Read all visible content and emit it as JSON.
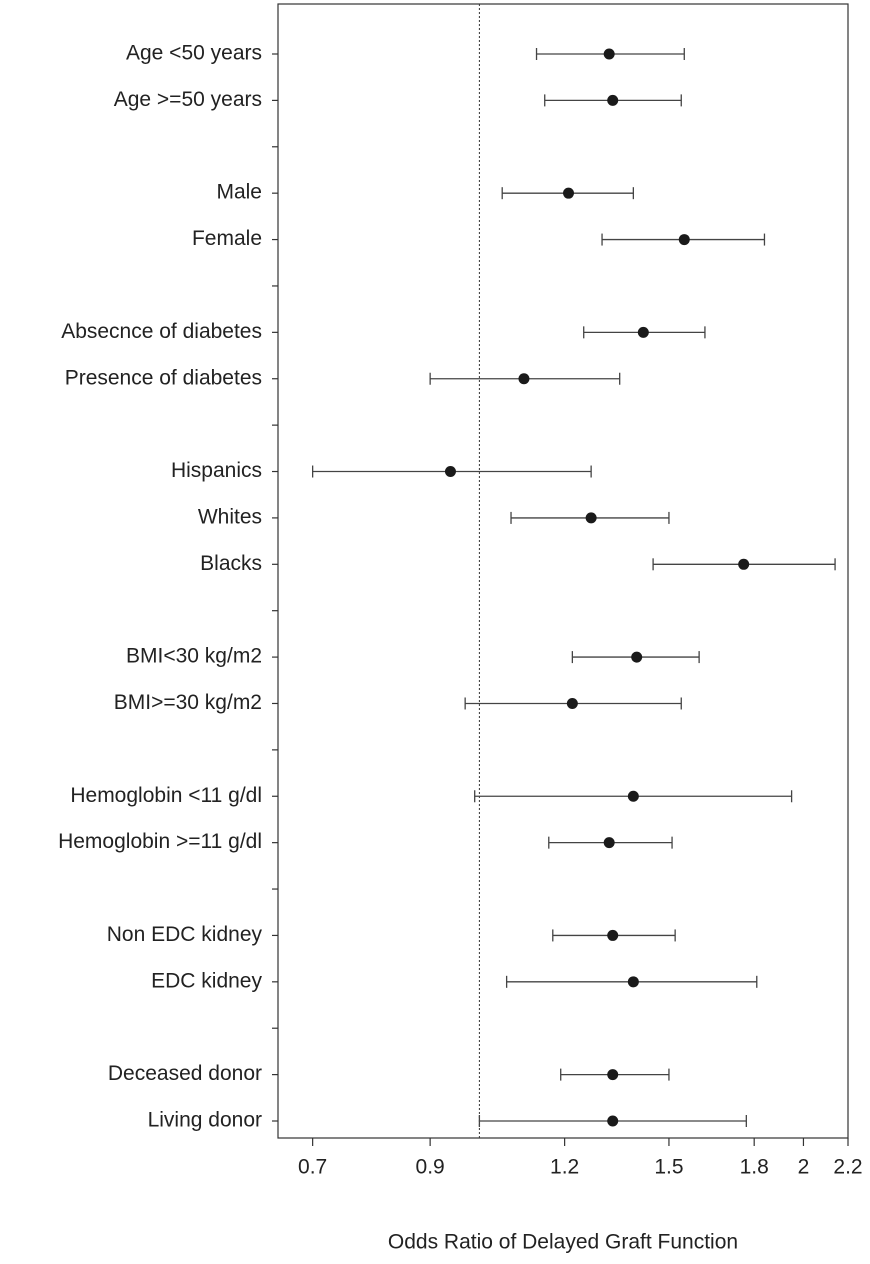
{
  "chart_data": {
    "type": "forest",
    "x_label": "Odds Ratio of Delayed Graft Function",
    "categories": [
      "Age <50 years",
      "Age >=50 years",
      null,
      "Male",
      "Female",
      null,
      "Absecnce of diabetes",
      "Presence of diabetes",
      null,
      "Hispanics",
      "Whites",
      "Blacks",
      null,
      "BMI<30 kg/m2",
      "BMI>=30 kg/m2",
      null,
      "Hemoglobin <11 g/dl",
      "Hemoglobin >=11 g/dl",
      null,
      "Non EDC kidney",
      "EDC kidney",
      null,
      "Deceased donor",
      "Living donor"
    ],
    "values": [
      1.32,
      1.33,
      null,
      1.21,
      1.55,
      null,
      1.42,
      1.1,
      null,
      0.94,
      1.27,
      1.76,
      null,
      1.4,
      1.22,
      null,
      1.39,
      1.32,
      null,
      1.33,
      1.39,
      null,
      1.33,
      1.33
    ],
    "lower": [
      1.13,
      1.15,
      null,
      1.05,
      1.3,
      null,
      1.25,
      0.9,
      null,
      0.7,
      1.07,
      1.45,
      null,
      1.22,
      0.97,
      null,
      0.99,
      1.16,
      null,
      1.17,
      1.06,
      null,
      1.19,
      1.0
    ],
    "upper": [
      1.55,
      1.54,
      null,
      1.39,
      1.84,
      null,
      1.62,
      1.35,
      null,
      1.27,
      1.5,
      2.14,
      null,
      1.6,
      1.54,
      null,
      1.95,
      1.51,
      null,
      1.52,
      1.81,
      null,
      1.5,
      1.77
    ],
    "color": "#1a1a1a",
    "xscale": "log",
    "xlim": [
      0.65,
      2.2
    ],
    "xticks": [
      0.7,
      0.9,
      1.2,
      1.5,
      1.8,
      2,
      2.2
    ],
    "reference_line": 1
  }
}
